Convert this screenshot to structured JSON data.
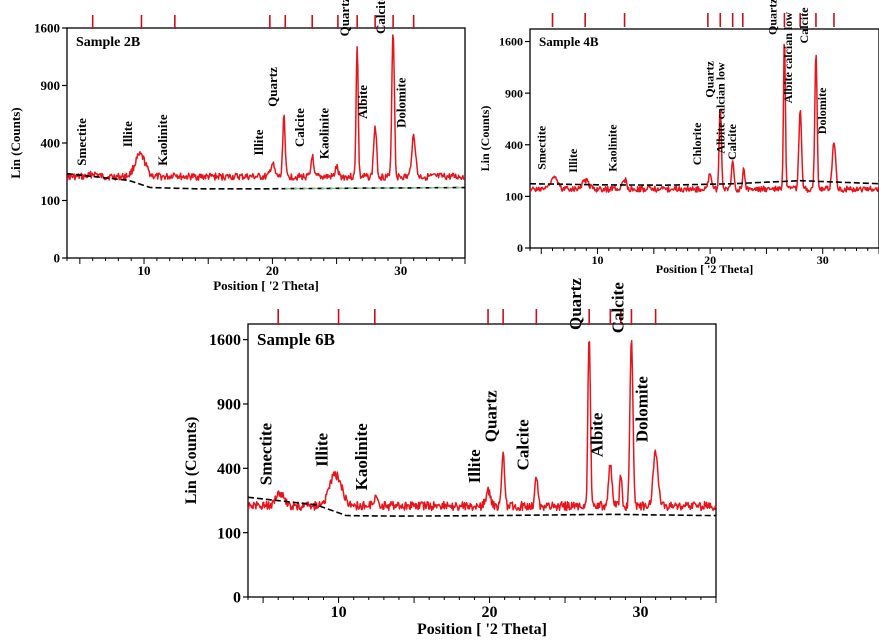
{
  "chart_data": [
    {
      "type": "line",
      "title": "Sample 2B",
      "xlabel": "Position [ '2 Theta]",
      "ylabel": "Lin (Counts)",
      "xlim": [
        4,
        35
      ],
      "ylim": [
        0,
        1600
      ],
      "yscale": "sqrt",
      "x_ticks": [
        10,
        20,
        30
      ],
      "x_tick_labels": [
        "10",
        "20",
        "30"
      ],
      "y_ticks": [
        0,
        100,
        400,
        900,
        1600
      ],
      "y_tick_labels": [
        "0",
        "100",
        "400",
        "900",
        "1600"
      ],
      "show_ylabel": true,
      "grid": false,
      "colors": {
        "pattern": "#e8141c",
        "background": "#000000",
        "background_tail": "#7fc97f",
        "markers": "#c8101a"
      },
      "baseline": 200,
      "background_points": [
        [
          4,
          215
        ],
        [
          8.8,
          182
        ],
        [
          10.5,
          150
        ],
        [
          14,
          145
        ],
        [
          20,
          145
        ],
        [
          28,
          148
        ],
        [
          35,
          150
        ]
      ],
      "peaks": [
        {
          "x": 6.1,
          "y": 215,
          "w": 0.4
        },
        {
          "x": 9.7,
          "y": 320,
          "w": 0.55
        },
        {
          "x": 12.4,
          "y": 215,
          "w": 0.25
        },
        {
          "x": 20.0,
          "y": 270,
          "w": 0.2
        },
        {
          "x": 20.9,
          "y": 620,
          "w": 0.12
        },
        {
          "x": 23.1,
          "y": 320,
          "w": 0.12
        },
        {
          "x": 25.0,
          "y": 250,
          "w": 0.15
        },
        {
          "x": 26.6,
          "y": 1380,
          "w": 0.1
        },
        {
          "x": 28.0,
          "y": 520,
          "w": 0.15
        },
        {
          "x": 29.4,
          "y": 1560,
          "w": 0.12
        },
        {
          "x": 31.0,
          "y": 450,
          "w": 0.2
        }
      ],
      "annotations": [
        {
          "x": 6.1,
          "text": "Smectite"
        },
        {
          "x": 9.7,
          "text": "Illite"
        },
        {
          "x": 12.4,
          "text": "Kaolinite"
        },
        {
          "x": 19.9,
          "text": "Illite"
        },
        {
          "x": 21.0,
          "text": "Quartz"
        },
        {
          "x": 23.1,
          "text": "Calcite"
        },
        {
          "x": 25.0,
          "text": "Kaolinite"
        },
        {
          "x": 26.6,
          "text": "Quartz"
        },
        {
          "x": 28.0,
          "text": "Albite"
        },
        {
          "x": 29.4,
          "text": "Calcite"
        },
        {
          "x": 31.0,
          "text": "Dolomite"
        }
      ],
      "marker_positions": [
        6.0,
        9.8,
        12.4,
        19.8,
        21.0,
        23.1,
        25.1,
        26.6,
        28.0,
        29.4,
        31.0
      ]
    },
    {
      "type": "line",
      "title": "Sample 4B",
      "xlabel": "Position [ '2 Theta]",
      "ylabel": "Lin (Counts)",
      "xlim": [
        4,
        35
      ],
      "ylim": [
        0,
        1800
      ],
      "yscale": "sqrt",
      "x_ticks": [
        10,
        20,
        30
      ],
      "x_tick_labels": [
        "10",
        "20",
        "30"
      ],
      "y_ticks": [
        0,
        100,
        400,
        900,
        1600
      ],
      "y_tick_labels": [
        "0",
        "100",
        "400",
        "900",
        "1600"
      ],
      "show_ylabel": true,
      "grid": false,
      "colors": {
        "pattern": "#e8141c",
        "background": "#000000",
        "background_tail": "#000000",
        "markers": "#c8101a"
      },
      "baseline": 130,
      "background_points": [
        [
          4,
          155
        ],
        [
          10,
          150
        ],
        [
          16,
          148
        ],
        [
          22,
          155
        ],
        [
          28,
          170
        ],
        [
          35,
          155
        ]
      ],
      "peaks": [
        {
          "x": 6.1,
          "y": 185,
          "w": 0.4
        },
        {
          "x": 8.9,
          "y": 170,
          "w": 0.4
        },
        {
          "x": 12.4,
          "y": 175,
          "w": 0.25
        },
        {
          "x": 20.0,
          "y": 210,
          "w": 0.2
        },
        {
          "x": 20.9,
          "y": 760,
          "w": 0.12
        },
        {
          "x": 22.0,
          "y": 280,
          "w": 0.15
        },
        {
          "x": 23.0,
          "y": 240,
          "w": 0.12
        },
        {
          "x": 26.6,
          "y": 1660,
          "w": 0.1
        },
        {
          "x": 28.0,
          "y": 700,
          "w": 0.15
        },
        {
          "x": 29.4,
          "y": 1450,
          "w": 0.12
        },
        {
          "x": 31.0,
          "y": 420,
          "w": 0.2
        }
      ],
      "annotations": [
        {
          "x": 6.1,
          "text": "Smectite"
        },
        {
          "x": 8.9,
          "text": "Illite"
        },
        {
          "x": 12.4,
          "text": "Kaolinite"
        },
        {
          "x": 19.9,
          "text": "Chlorite"
        },
        {
          "x": 21.0,
          "text": "Quartz"
        },
        {
          "x": 22.0,
          "text": "Albite calcian low"
        },
        {
          "x": 23.0,
          "text": "Calcite"
        },
        {
          "x": 26.6,
          "text": "Quartz"
        },
        {
          "x": 28.0,
          "text": "Albite calcian low"
        },
        {
          "x": 29.4,
          "text": "Calcite"
        },
        {
          "x": 31.0,
          "text": "Dolomite"
        }
      ],
      "marker_positions": [
        6.0,
        8.9,
        12.4,
        19.8,
        20.9,
        22.0,
        22.9,
        26.6,
        28.0,
        29.4,
        31.0
      ]
    },
    {
      "type": "line",
      "title": "Sample 6B",
      "xlabel": "Position [ '2 Theta]",
      "ylabel": "Lin (Counts)",
      "xlim": [
        4,
        35
      ],
      "ylim": [
        0,
        1800
      ],
      "yscale": "sqrt",
      "x_ticks": [
        10,
        20,
        30
      ],
      "x_tick_labels": [
        "10",
        "20",
        "30"
      ],
      "y_ticks": [
        0,
        100,
        400,
        900,
        1600
      ],
      "y_tick_labels": [
        "0",
        "100",
        "400",
        "900",
        "1600"
      ],
      "show_ylabel": true,
      "grid": false,
      "colors": {
        "pattern": "#e8141c",
        "background": "#000000",
        "background_tail": "#000000",
        "markers": "#c8101a"
      },
      "baseline": 200,
      "background_points": [
        [
          4,
          240
        ],
        [
          8.5,
          205
        ],
        [
          10.5,
          160
        ],
        [
          14,
          158
        ],
        [
          20,
          160
        ],
        [
          28,
          165
        ],
        [
          35,
          160
        ]
      ],
      "peaks": [
        {
          "x": 6.1,
          "y": 260,
          "w": 0.4
        },
        {
          "x": 9.8,
          "y": 360,
          "w": 0.55
        },
        {
          "x": 12.4,
          "y": 235,
          "w": 0.25
        },
        {
          "x": 19.9,
          "y": 270,
          "w": 0.2
        },
        {
          "x": 20.9,
          "y": 520,
          "w": 0.12
        },
        {
          "x": 23.1,
          "y": 340,
          "w": 0.12
        },
        {
          "x": 26.6,
          "y": 1680,
          "w": 0.1
        },
        {
          "x": 28.0,
          "y": 420,
          "w": 0.15
        },
        {
          "x": 28.7,
          "y": 360,
          "w": 0.1
        },
        {
          "x": 29.4,
          "y": 1580,
          "w": 0.12
        },
        {
          "x": 31.0,
          "y": 520,
          "w": 0.2
        }
      ],
      "annotations": [
        {
          "x": 6.1,
          "text": "Smectite"
        },
        {
          "x": 9.8,
          "text": "Illite"
        },
        {
          "x": 12.4,
          "text": "Kaolinite"
        },
        {
          "x": 19.9,
          "text": "Illite"
        },
        {
          "x": 21.0,
          "text": "Quartz"
        },
        {
          "x": 23.1,
          "text": "Calcite"
        },
        {
          "x": 26.6,
          "text": "Quartz"
        },
        {
          "x": 28.0,
          "text": "Albite"
        },
        {
          "x": 29.4,
          "text": "Calcite"
        },
        {
          "x": 31.0,
          "text": "Dolomite"
        }
      ],
      "marker_positions": [
        6.0,
        10.0,
        12.4,
        19.9,
        20.9,
        23.1,
        26.6,
        28.0,
        28.7,
        29.4,
        31.0
      ]
    }
  ]
}
